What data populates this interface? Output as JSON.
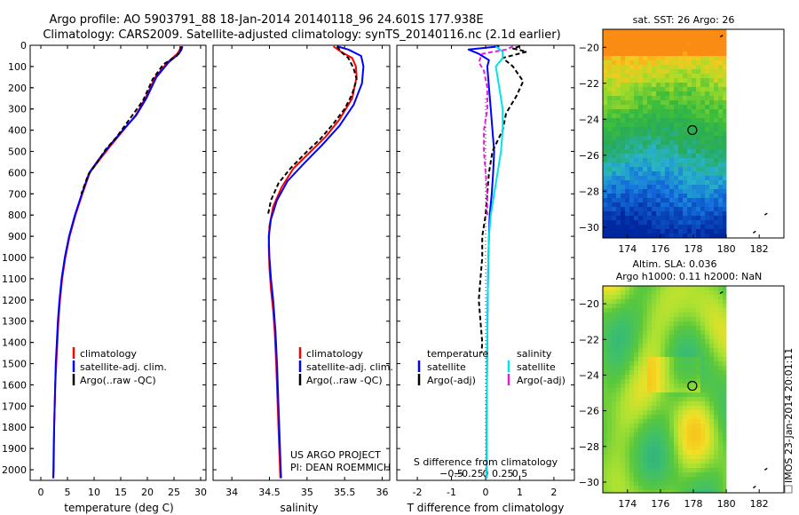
{
  "title_line1": "Argo profile: AO 5903791_88 18-Jan-2014 20140118_96 24.601S 177.938E",
  "title_line2": "Climatology: CARS2009. Satellite-adjusted climatology: synTS_20140116.nc (2.1d earlier)",
  "footer_project": "US ARGO PROJECT",
  "footer_pi": "PI: DEAN ROEMMICH",
  "imos_stamp": "IMOS 23-Jan-2014 20:01:11",
  "colors": {
    "climatology": "#ff0000",
    "satellite": "#0000ff",
    "argo": "#000000",
    "sal_satellite": "#00e5e5",
    "sal_argo": "#e020e0"
  },
  "chart_data": [
    {
      "type": "line",
      "id": "temperature",
      "xlabel": "temperature (deg C)",
      "ylabel": "",
      "xlim": [
        -2,
        31
      ],
      "ylim": [
        2050,
        0
      ],
      "xticks": [
        0,
        5,
        10,
        15,
        20,
        25,
        30
      ],
      "xtick_labels": [
        "0",
        "5",
        "10",
        "15",
        "20",
        "25",
        "30"
      ],
      "yticks": [
        0,
        100,
        200,
        300,
        400,
        500,
        600,
        700,
        800,
        900,
        1000,
        1100,
        1200,
        1300,
        1400,
        1500,
        1600,
        1700,
        1800,
        1900,
        2000
      ],
      "ytick_labels": [
        "0",
        "100",
        "200",
        "300",
        "400",
        "500",
        "600",
        "700",
        "800",
        "900",
        "1000",
        "1100",
        "1200",
        "1300",
        "1400",
        "1500",
        "1600",
        "1700",
        "1800",
        "1900",
        "2000"
      ],
      "legend": [
        "climatology",
        "satellite-adj. clim.",
        "Argo(..raw -QC)"
      ],
      "series": [
        {
          "name": "climatology",
          "style": "solid",
          "points": [
            [
              26.2,
              5
            ],
            [
              26.1,
              20
            ],
            [
              25.6,
              40
            ],
            [
              23.8,
              80
            ],
            [
              21.5,
              150
            ],
            [
              19.6,
              250
            ],
            [
              17.8,
              330
            ],
            [
              15.5,
              400
            ],
            [
              13.2,
              470
            ],
            [
              11.0,
              540
            ],
            [
              9.2,
              600
            ],
            [
              7.8,
              700
            ],
            [
              6.5,
              800
            ],
            [
              5.4,
              900
            ],
            [
              4.6,
              1000
            ],
            [
              4.0,
              1100
            ],
            [
              3.6,
              1200
            ],
            [
              3.3,
              1300
            ],
            [
              3.1,
              1400
            ],
            [
              2.9,
              1500
            ],
            [
              2.7,
              1600
            ],
            [
              2.6,
              1700
            ],
            [
              2.5,
              1800
            ],
            [
              2.4,
              1900
            ],
            [
              2.35,
              2000
            ],
            [
              2.3,
              2040
            ]
          ]
        },
        {
          "name": "satellite-adj. clim.",
          "style": "solid",
          "points": [
            [
              26.6,
              5
            ],
            [
              26.4,
              20
            ],
            [
              25.9,
              40
            ],
            [
              24.0,
              80
            ],
            [
              21.7,
              150
            ],
            [
              19.8,
              250
            ],
            [
              17.9,
              330
            ],
            [
              15.4,
              400
            ],
            [
              13.0,
              470
            ],
            [
              10.8,
              540
            ],
            [
              9.1,
              600
            ],
            [
              7.7,
              700
            ],
            [
              6.4,
              800
            ],
            [
              5.3,
              900
            ],
            [
              4.5,
              1000
            ],
            [
              3.9,
              1100
            ],
            [
              3.5,
              1200
            ],
            [
              3.2,
              1300
            ],
            [
              3.0,
              1400
            ],
            [
              2.8,
              1500
            ],
            [
              2.7,
              1600
            ],
            [
              2.6,
              1700
            ],
            [
              2.5,
              1800
            ],
            [
              2.45,
              1900
            ],
            [
              2.4,
              2000
            ],
            [
              2.35,
              2040
            ]
          ]
        },
        {
          "name": "Argo(..raw -QC)",
          "style": "dashed",
          "points": [
            [
              26.3,
              5
            ],
            [
              26.2,
              25
            ],
            [
              25.5,
              50
            ],
            [
              23.0,
              90
            ],
            [
              21.0,
              160
            ],
            [
              19.2,
              260
            ],
            [
              16.6,
              350
            ],
            [
              14.3,
              430
            ],
            [
              12.2,
              490
            ],
            [
              10.6,
              550
            ],
            [
              8.9,
              610
            ],
            [
              7.6,
              700
            ]
          ]
        }
      ]
    },
    {
      "type": "line",
      "id": "salinity",
      "xlabel": "salinity",
      "ylabel": "",
      "xlim": [
        33.75,
        36.1
      ],
      "ylim": [
        2050,
        0
      ],
      "xticks": [
        34,
        34.5,
        35,
        35.5,
        36
      ],
      "xtick_labels": [
        "34",
        "34.5",
        "35",
        "35.5",
        "36"
      ],
      "legend": [
        "climatology",
        "satellite-adj. clim.",
        "Argo(..raw -QC)"
      ],
      "series": [
        {
          "name": "climatology",
          "style": "solid",
          "points": [
            [
              35.35,
              5
            ],
            [
              35.45,
              30
            ],
            [
              35.6,
              60
            ],
            [
              35.65,
              100
            ],
            [
              35.66,
              150
            ],
            [
              35.6,
              250
            ],
            [
              35.43,
              350
            ],
            [
              35.25,
              430
            ],
            [
              35.05,
              500
            ],
            [
              34.82,
              580
            ],
            [
              34.66,
              670
            ],
            [
              34.55,
              760
            ],
            [
              34.5,
              850
            ],
            [
              34.49,
              950
            ],
            [
              34.5,
              1050
            ],
            [
              34.52,
              1150
            ],
            [
              34.55,
              1250
            ],
            [
              34.57,
              1350
            ],
            [
              34.59,
              1500
            ],
            [
              34.61,
              1700
            ],
            [
              34.63,
              1900
            ],
            [
              34.64,
              2000
            ],
            [
              34.645,
              2040
            ]
          ]
        },
        {
          "name": "satellite-adj. clim.",
          "style": "solid",
          "points": [
            [
              35.4,
              5
            ],
            [
              35.55,
              20
            ],
            [
              35.72,
              50
            ],
            [
              35.75,
              100
            ],
            [
              35.73,
              180
            ],
            [
              35.62,
              280
            ],
            [
              35.43,
              380
            ],
            [
              35.2,
              470
            ],
            [
              34.95,
              560
            ],
            [
              34.74,
              640
            ],
            [
              34.6,
              730
            ],
            [
              34.52,
              820
            ],
            [
              34.49,
              900
            ],
            [
              34.5,
              1000
            ],
            [
              34.52,
              1100
            ],
            [
              34.55,
              1200
            ],
            [
              34.58,
              1350
            ],
            [
              34.6,
              1500
            ],
            [
              34.62,
              1700
            ],
            [
              34.64,
              1900
            ],
            [
              34.65,
              2000
            ],
            [
              34.655,
              2040
            ]
          ]
        },
        {
          "name": "Argo(..raw -QC)",
          "style": "dashed",
          "points": [
            [
              35.4,
              5
            ],
            [
              35.45,
              30
            ],
            [
              35.55,
              60
            ],
            [
              35.62,
              110
            ],
            [
              35.66,
              160
            ],
            [
              35.6,
              230
            ],
            [
              35.5,
              300
            ],
            [
              35.35,
              370
            ],
            [
              35.18,
              440
            ],
            [
              35.0,
              500
            ],
            [
              34.78,
              580
            ],
            [
              34.62,
              650
            ],
            [
              34.52,
              730
            ],
            [
              34.48,
              800
            ]
          ]
        }
      ]
    },
    {
      "type": "line",
      "id": "difference",
      "xlabel": "T difference from climatology",
      "xlabel_top": "S difference from climatology",
      "xlim": [
        -2.6,
        2.6
      ],
      "ylim": [
        2050,
        0
      ],
      "xticks": [
        -2,
        -1,
        0,
        1,
        2
      ],
      "xtick_labels": [
        "-2",
        "-1",
        "0",
        "1",
        "2"
      ],
      "sticks": [
        -1,
        -0.5,
        0,
        0.5,
        1
      ],
      "stick_labels": [
        "−0.5",
        "−0.25",
        "0",
        "0.25",
        "0.5"
      ],
      "legend_temperature_title": "temperature",
      "legend_salinity_title": "salinity",
      "legend": [
        "satellite",
        "Argo(-adj)",
        "satellite",
        "Argo(-adj)"
      ],
      "series": [
        {
          "name": "T satellite",
          "style": "solid",
          "color_key": "satellite",
          "points": [
            [
              0.4,
              5
            ],
            [
              -0.5,
              20
            ],
            [
              -0.2,
              40
            ],
            [
              0.1,
              70
            ],
            [
              0.05,
              100
            ],
            [
              0.1,
              200
            ],
            [
              0.15,
              300
            ],
            [
              0.2,
              400
            ],
            [
              0.25,
              500
            ],
            [
              0.22,
              600
            ],
            [
              0.18,
              700
            ],
            [
              0.12,
              800
            ],
            [
              0.1,
              900
            ],
            [
              0.08,
              1000
            ],
            [
              0.06,
              1200
            ],
            [
              0.05,
              1400
            ],
            [
              0.04,
              1600
            ],
            [
              0.03,
              1800
            ],
            [
              0.03,
              2000
            ],
            [
              0.03,
              2040
            ]
          ]
        },
        {
          "name": "T Argo(-adj)",
          "style": "dashed",
          "color_key": "argo",
          "points": [
            [
              1.0,
              5
            ],
            [
              0.8,
              15
            ],
            [
              1.2,
              30
            ],
            [
              0.5,
              60
            ],
            [
              0.8,
              100
            ],
            [
              1.1,
              170
            ],
            [
              0.9,
              240
            ],
            [
              0.6,
              320
            ],
            [
              0.5,
              400
            ],
            [
              0.2,
              500
            ],
            [
              0.1,
              600
            ],
            [
              0.05,
              700
            ],
            [
              0.0,
              800
            ],
            [
              -0.1,
              900
            ],
            [
              -0.1,
              1000
            ],
            [
              -0.15,
              1100
            ],
            [
              -0.2,
              1200
            ],
            [
              -0.15,
              1300
            ],
            [
              -0.1,
              1400
            ],
            [
              -0.12,
              1450
            ]
          ]
        },
        {
          "name": "S satellite",
          "style": "solid",
          "color_key": "sal_satellite",
          "points": [
            [
              0.3,
              5
            ],
            [
              0.5,
              30
            ],
            [
              0.5,
              60
            ],
            [
              0.3,
              100
            ],
            [
              0.4,
              200
            ],
            [
              0.5,
              300
            ],
            [
              0.5,
              400
            ],
            [
              0.45,
              500
            ],
            [
              0.35,
              600
            ],
            [
              0.25,
              700
            ],
            [
              0.15,
              800
            ],
            [
              0.1,
              900
            ],
            [
              0.08,
              1000
            ],
            [
              0.06,
              1200
            ],
            [
              0.05,
              1400
            ],
            [
              0.04,
              1600
            ],
            [
              0.03,
              1800
            ],
            [
              0.03,
              2000
            ],
            [
              0.03,
              2040
            ]
          ]
        },
        {
          "name": "S Argo(-adj)",
          "style": "dashed",
          "color_key": "sal_argo",
          "points": [
            [
              0.8,
              5
            ],
            [
              0.6,
              20
            ],
            [
              -0.1,
              40
            ],
            [
              -0.2,
              80
            ],
            [
              -0.05,
              120
            ],
            [
              0.05,
              200
            ],
            [
              0.05,
              300
            ],
            [
              -0.05,
              400
            ],
            [
              -0.05,
              500
            ],
            [
              0.0,
              600
            ],
            [
              0.05,
              700
            ],
            [
              0.05,
              800
            ]
          ]
        }
      ]
    },
    {
      "type": "heatmap",
      "id": "sst_map",
      "title": "sat. SST: 26 Argo: 26",
      "xlim": [
        172.5,
        183.5
      ],
      "ylim": [
        -30.6,
        -19.0
      ],
      "xticks": [
        174,
        176,
        178,
        180,
        182
      ],
      "yticks": [
        -20,
        -22,
        -24,
        -26,
        -28,
        -30
      ],
      "ytick_labels": [
        "−20",
        "−22",
        "−24",
        "−26",
        "−28",
        "−30"
      ],
      "argo_position": [
        177.938,
        -24.601
      ],
      "data_lon_max": 180.0
    },
    {
      "type": "heatmap",
      "id": "sla_map",
      "title": "Altim. SLA: 0.036",
      "title2": "Argo h1000: 0.11 h2000: NaN",
      "xlim": [
        172.5,
        183.5
      ],
      "ylim": [
        -30.6,
        -19.0
      ],
      "xticks": [
        174,
        176,
        178,
        180,
        182
      ],
      "yticks": [
        -20,
        -22,
        -24,
        -26,
        -28,
        -30
      ],
      "ytick_labels": [
        "−20",
        "−22",
        "−24",
        "−26",
        "−28",
        "−30"
      ],
      "argo_position": [
        177.938,
        -24.601
      ],
      "data_lon_max": 180.0
    }
  ]
}
